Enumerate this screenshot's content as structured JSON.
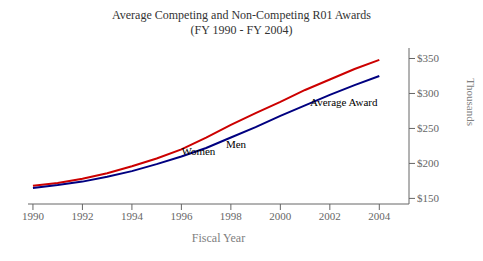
{
  "chart_data": {
    "type": "line",
    "title": "Average Competing and Non-Competing R01 Awards",
    "subtitle": "(FY 1990 - FY 2004)",
    "x_label": "Fiscal Year",
    "y_label": "Thousands",
    "x": [
      1990,
      1991,
      1992,
      1993,
      1994,
      1995,
      1996,
      1997,
      1998,
      1999,
      2000,
      2001,
      2002,
      2003,
      2004
    ],
    "series": [
      {
        "color": "#cc0000",
        "values": [
          168,
          172,
          178,
          186,
          196,
          207,
          220,
          237,
          255,
          272,
          288,
          305,
          320,
          335,
          348
        ]
      },
      {
        "color": "#000080",
        "values": [
          165,
          169,
          174,
          181,
          189,
          199,
          210,
          222,
          237,
          252,
          268,
          283,
          298,
          312,
          325
        ]
      }
    ],
    "annotations": [
      {
        "text": "Women",
        "x": 1996.0,
        "y": 218
      },
      {
        "text": "Men",
        "x": 1997.8,
        "y": 228
      },
      {
        "text": "Average Award",
        "x": 2001.2,
        "y": 288
      }
    ],
    "xlim": [
      1989.8,
      2005.2
    ],
    "xticks": [
      1990,
      1992,
      1994,
      1996,
      1998,
      2000,
      2002,
      2004
    ],
    "ylim": [
      142,
      365
    ],
    "yticks": [
      {
        "value": 150,
        "label": "$150"
      },
      {
        "value": 200,
        "label": "$200"
      },
      {
        "value": 250,
        "label": "$250"
      },
      {
        "value": 300,
        "label": "$300"
      },
      {
        "value": 350,
        "label": "$350"
      }
    ],
    "grid": false
  }
}
